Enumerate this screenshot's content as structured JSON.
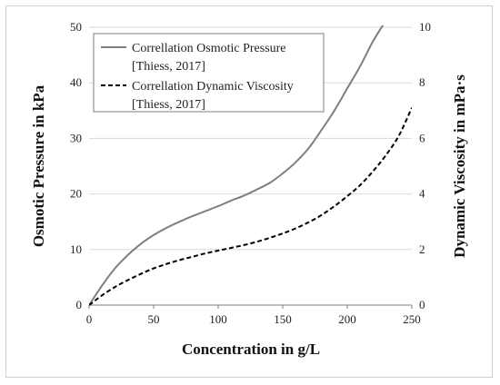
{
  "chart_data": {
    "type": "line",
    "xlabel": "Concentration in g/L",
    "ylabel_left": "Osmotic Pressure  in kPa",
    "ylabel_right": "Dynamic Viscosity in  mPa·s",
    "xlim": [
      0,
      250
    ],
    "ylim_left": [
      0,
      50
    ],
    "ylim_right": [
      0,
      10
    ],
    "x_ticks": [
      "0",
      "50",
      "100",
      "150",
      "200",
      "250"
    ],
    "y_left_ticks": [
      "0",
      "10",
      "20",
      "30",
      "40",
      "50"
    ],
    "y_right_ticks": [
      "0",
      "2",
      "4",
      "6",
      "8",
      "10"
    ],
    "grid": "horizontal",
    "legend_position": "top-left",
    "series": [
      {
        "name_line1": "Correllation Osmotic Pressure",
        "name_line2": "[Thiess, 2017]",
        "axis": "left",
        "style": "solid",
        "color": "#7f7f7f",
        "x": [
          0,
          10,
          20,
          30,
          40,
          50,
          60,
          70,
          80,
          90,
          100,
          110,
          120,
          130,
          140,
          150,
          160,
          170,
          180,
          190,
          200,
          210,
          220,
          228
        ],
        "y": [
          0,
          3.5,
          6.6,
          9.0,
          11.0,
          12.6,
          13.9,
          15.0,
          16.0,
          16.9,
          17.8,
          18.8,
          19.7,
          20.8,
          22.0,
          23.7,
          25.7,
          28.2,
          31.5,
          35.0,
          39.0,
          43.0,
          47.5,
          50.5
        ]
      },
      {
        "name_line1": "Correllation Dynamic Viscosity",
        "name_line2": "[Thiess, 2017]",
        "axis": "right",
        "style": "dashed",
        "color": "#000000",
        "x": [
          0,
          10,
          20,
          30,
          40,
          50,
          60,
          70,
          80,
          90,
          100,
          110,
          120,
          130,
          140,
          150,
          160,
          170,
          180,
          190,
          200,
          210,
          220,
          230,
          240,
          250
        ],
        "y": [
          0,
          0.35,
          0.65,
          0.9,
          1.12,
          1.32,
          1.48,
          1.62,
          1.74,
          1.86,
          1.96,
          2.06,
          2.16,
          2.28,
          2.42,
          2.58,
          2.76,
          2.98,
          3.24,
          3.56,
          3.92,
          4.32,
          4.82,
          5.4,
          6.1,
          7.1
        ]
      }
    ]
  }
}
